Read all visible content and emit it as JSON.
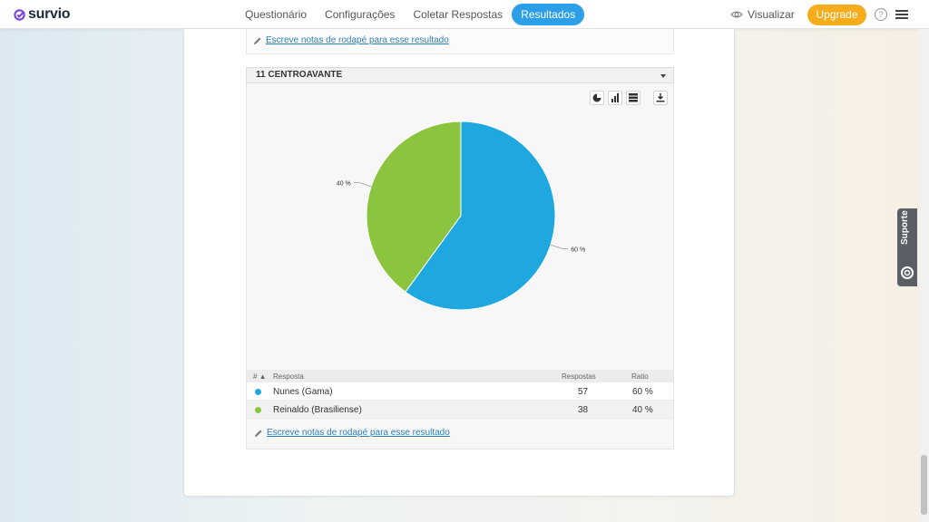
{
  "app": {
    "logo_text": "survio",
    "brand_color": "#7b4bdc"
  },
  "nav": {
    "items": [
      {
        "label": "Questionário"
      },
      {
        "label": "Configurações"
      },
      {
        "label": "Coletar Respostas"
      },
      {
        "label": "Resultados",
        "active": true
      }
    ],
    "visualizar_label": "Visualizar",
    "upgrade_label": "Upgrade",
    "help_label": "?"
  },
  "footnote_text": "Escreve notas de rodapé para esse resultado",
  "question": {
    "title": "11 CENTROAVANTE"
  },
  "chart_data": {
    "type": "pie",
    "categories": [
      "Nunes (Gama)",
      "Reinaldo (Brasiliense)"
    ],
    "values": [
      60,
      40
    ],
    "colors": [
      "#1fa8e0",
      "#8bc43f"
    ],
    "labels": [
      "60 %",
      "40 %"
    ]
  },
  "table": {
    "headers": {
      "num": "#",
      "answer": "Resposta",
      "responses": "Respostas",
      "ratio": "Ratio"
    },
    "rows": [
      {
        "answer": "Nunes (Gama)",
        "responses": "57",
        "ratio": "60 %",
        "color": "#1fa8e0"
      },
      {
        "answer": "Reinaldo (Brasiliense)",
        "responses": "38",
        "ratio": "40 %",
        "color": "#8bc43f"
      }
    ]
  },
  "support_label": "Suporte"
}
